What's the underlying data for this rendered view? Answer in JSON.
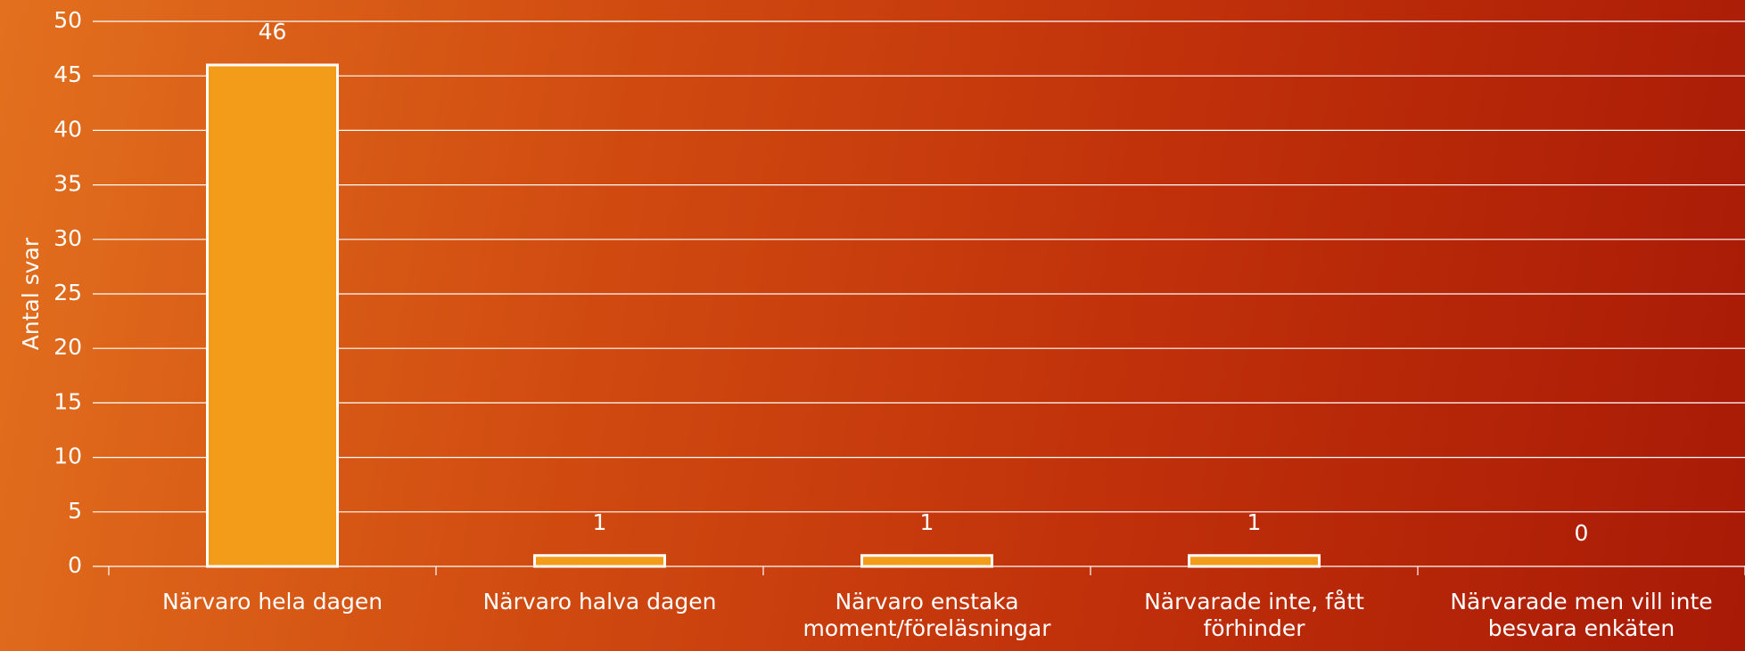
{
  "chart_data": {
    "type": "bar",
    "y_axis_label": "Antal svar",
    "categories": [
      "Närvaro hela dagen",
      "Närvaro halva dagen",
      "Närvaro enstaka moment/föreläsningar",
      "Närvarade inte, fått förhinder",
      "Närvarade men vill inte besvara enkäten"
    ],
    "values": [
      46,
      1,
      1,
      1,
      0
    ],
    "color": "#f39c1a",
    "ylim": [
      0,
      50
    ],
    "yticks": [
      0,
      5,
      10,
      15,
      20,
      25,
      30,
      35,
      40,
      45,
      50
    ],
    "grid": true
  }
}
